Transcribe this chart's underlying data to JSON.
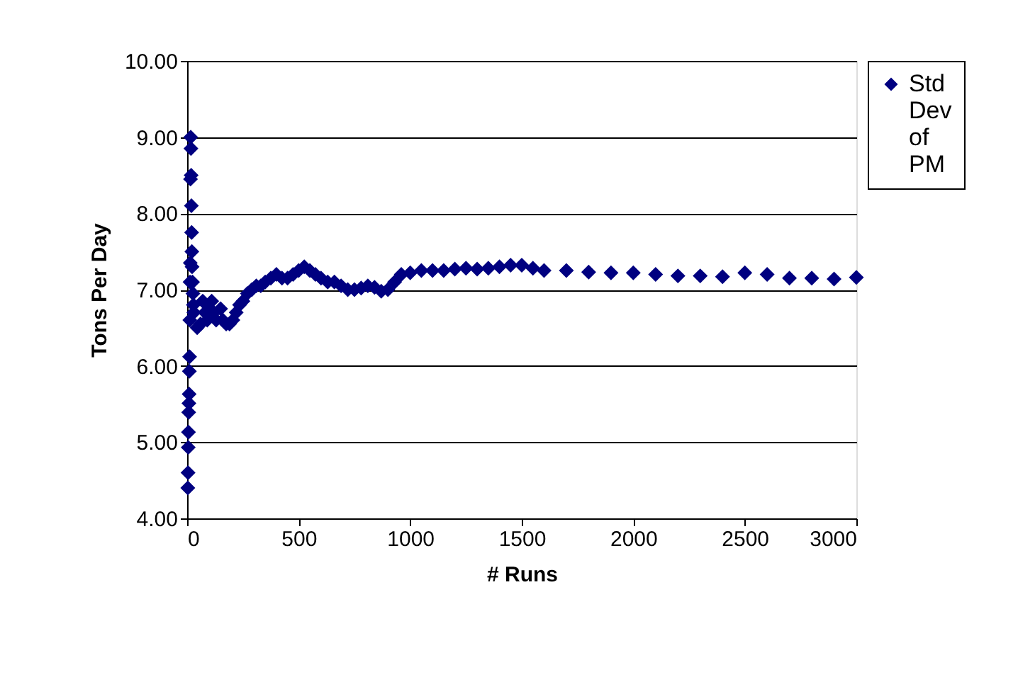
{
  "chart_data": {
    "type": "scatter",
    "xlabel": "# Runs",
    "ylabel": "Tons Per Day",
    "xlim": [
      0,
      3000
    ],
    "xticks": [
      0,
      500,
      1000,
      1500,
      2000,
      2500,
      3000
    ],
    "ylim": [
      4,
      10
    ],
    "yticks": [
      {
        "value": 4,
        "label": "4.00"
      },
      {
        "value": 5,
        "label": "5.00"
      },
      {
        "value": 6,
        "label": "6.00"
      },
      {
        "value": 7,
        "label": "7.00"
      },
      {
        "value": 8,
        "label": "8.00"
      },
      {
        "value": 9,
        "label": "9.00"
      },
      {
        "value": 10,
        "label": "10.00"
      }
    ],
    "grid": "y",
    "legend": "right",
    "marker": "diamond",
    "series": [
      {
        "name": "Std Dev of PM",
        "color": "#000080",
        "x": [
          3,
          4,
          5,
          6,
          7,
          8,
          9,
          10,
          11,
          12,
          13,
          14,
          15,
          16,
          17,
          18,
          19,
          20,
          21,
          22,
          24,
          26,
          28,
          30,
          45,
          60,
          70,
          80,
          90,
          100,
          110,
          120,
          130,
          150,
          160,
          175,
          190,
          205,
          220,
          235,
          250,
          270,
          290,
          310,
          330,
          350,
          375,
          400,
          425,
          450,
          475,
          500,
          525,
          550,
          575,
          600,
          630,
          660,
          690,
          720,
          750,
          780,
          810,
          840,
          870,
          900,
          930,
          960,
          1000,
          1050,
          1100,
          1150,
          1200,
          1250,
          1300,
          1350,
          1400,
          1450,
          1500,
          1550,
          1600,
          1700,
          1800,
          1900,
          2000,
          2100,
          2200,
          2300,
          2400,
          2500,
          2600,
          2700,
          2800,
          2900,
          3000
        ],
        "values": [
          4.4,
          4.6,
          4.93,
          5.13,
          5.39,
          5.51,
          5.63,
          5.93,
          6.12,
          6.6,
          7.1,
          7.35,
          8.45,
          9.0,
          8.85,
          8.5,
          8.1,
          7.75,
          7.5,
          7.3,
          7.1,
          6.95,
          6.8,
          6.7,
          6.5,
          6.55,
          6.85,
          6.7,
          6.6,
          6.75,
          6.85,
          6.7,
          6.6,
          6.75,
          6.6,
          6.55,
          6.55,
          6.6,
          6.7,
          6.8,
          6.85,
          6.95,
          7.0,
          7.05,
          7.05,
          7.1,
          7.15,
          7.2,
          7.15,
          7.15,
          7.2,
          7.25,
          7.3,
          7.25,
          7.2,
          7.15,
          7.1,
          7.1,
          7.05,
          7.0,
          7.0,
          7.02,
          7.05,
          7.03,
          6.98,
          7.0,
          7.1,
          7.2,
          7.22,
          7.25,
          7.25,
          7.25,
          7.27,
          7.28,
          7.27,
          7.28,
          7.3,
          7.32,
          7.32,
          7.28,
          7.25,
          7.25,
          7.23,
          7.22,
          7.22,
          7.2,
          7.18,
          7.18,
          7.17,
          7.22,
          7.2,
          7.15,
          7.15,
          7.14,
          7.16
        ]
      }
    ]
  }
}
